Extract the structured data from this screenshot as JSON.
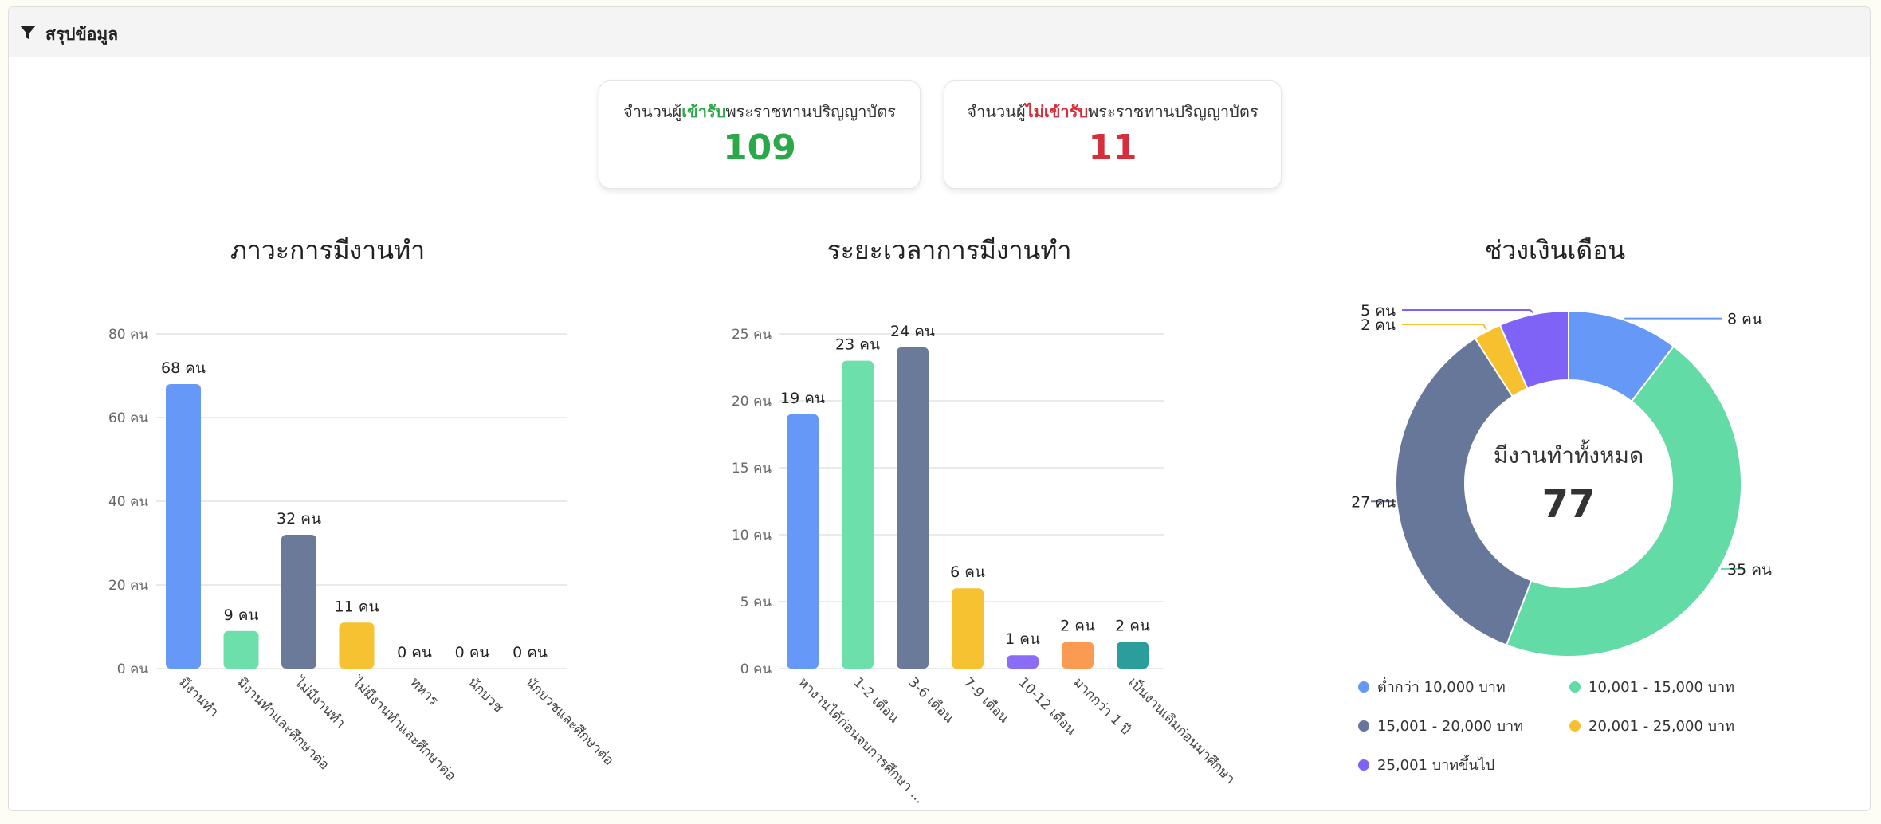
{
  "panel": {
    "title": "สรุปข้อมูล",
    "icon": "filter-icon"
  },
  "stats": {
    "accepted": {
      "prefix": "จำนวนผู้",
      "highlight": "เข้ารับ",
      "suffix": "พระราชทานปริญญาบัตร",
      "value": "109",
      "color": "#2aa84a"
    },
    "not_accepted": {
      "prefix": "จำนวนผู้",
      "highlight": "ไม่เข้ารับ",
      "suffix": "พระราชทานปริญญาบัตร",
      "value": "11",
      "color": "#d62f3c"
    }
  },
  "chart_data": [
    {
      "type": "bar",
      "title": "ภาวะการมีงานทำ",
      "categories": [
        "มีงานทำ",
        "มีงานทำและศึกษาต่อ",
        "ไม่มีงานทำ",
        "ไม่มีงานทำและศึกษาต่อ",
        "ทหาร",
        "นักบวช",
        "นักบวชและศึกษาต่อ"
      ],
      "values": [
        68,
        9,
        32,
        11,
        0,
        0,
        0
      ],
      "data_labels": [
        "68 คน",
        "9 คน",
        "32 คน",
        "11 คน",
        "0 คน",
        "0 คน",
        "0 คน"
      ],
      "colors": [
        "#6699f7",
        "#6ddfab",
        "#6b7a99",
        "#f6c232",
        "#8b6cf6",
        "#fb9a52",
        "#2b9e9b"
      ],
      "yticks": [
        0,
        20,
        40,
        60,
        80
      ],
      "ytick_labels": [
        "0 คน",
        "20 คน",
        "40 คน",
        "60 คน",
        "80 คน"
      ],
      "ylim": [
        0,
        80
      ],
      "grid": true
    },
    {
      "type": "bar",
      "title": "ระยะเวลาการมีงานทำ",
      "categories": [
        "หางานได้ก่อนจบการศึกษา",
        "1-2 เดือน",
        "3-6 เดือน",
        "7-9 เดือน",
        "10-12 เดือน",
        "มากกว่า 1 ปี",
        "เป็นงานเดิมก่อนมาศึกษา"
      ],
      "tick_labels": [
        "หางานได้ก่อนจบการศึกษา ...",
        "1-2 เดือน",
        "3-6 เดือน",
        "7-9 เดือน",
        "10-12 เดือน",
        "มากกว่า 1 ปี",
        "เป็นงานเดิมก่อนมาศึกษา"
      ],
      "values": [
        19,
        23,
        24,
        6,
        1,
        2,
        2
      ],
      "data_labels": [
        "19 คน",
        "23 คน",
        "24 คน",
        "6 คน",
        "1 คน",
        "2 คน",
        "2 คน"
      ],
      "colors": [
        "#6699f7",
        "#6ddfab",
        "#6b7a99",
        "#f6c232",
        "#8b6cf6",
        "#fb9a52",
        "#2b9e9b"
      ],
      "yticks": [
        0,
        5,
        10,
        15,
        20,
        25
      ],
      "ytick_labels": [
        "0 คน",
        "5 คน",
        "10 คน",
        "15 คน",
        "20 คน",
        "25 คน"
      ],
      "ylim": [
        0,
        25
      ],
      "grid": true
    },
    {
      "type": "pie",
      "title": "ช่วงเงินเดือน",
      "center_label": "มีงานทำทั้งหมด",
      "center_value": "77",
      "categories": [
        "ต่ำกว่า 10,000 บาท",
        "10,001 - 15,000 บาท",
        "15,001 - 20,000 บาท",
        "20,001 - 25,000 บาท",
        "25,001 บาทขึ้นไป"
      ],
      "values": [
        8,
        35,
        27,
        2,
        5
      ],
      "data_labels": [
        "8 คน",
        "35 คน",
        "27 คน",
        "2 คน",
        "5 คน"
      ],
      "colors": [
        "#6699f7",
        "#62dba6",
        "#66779a",
        "#f6c02e",
        "#7f63f6"
      ],
      "legend_position": "bottom"
    }
  ]
}
